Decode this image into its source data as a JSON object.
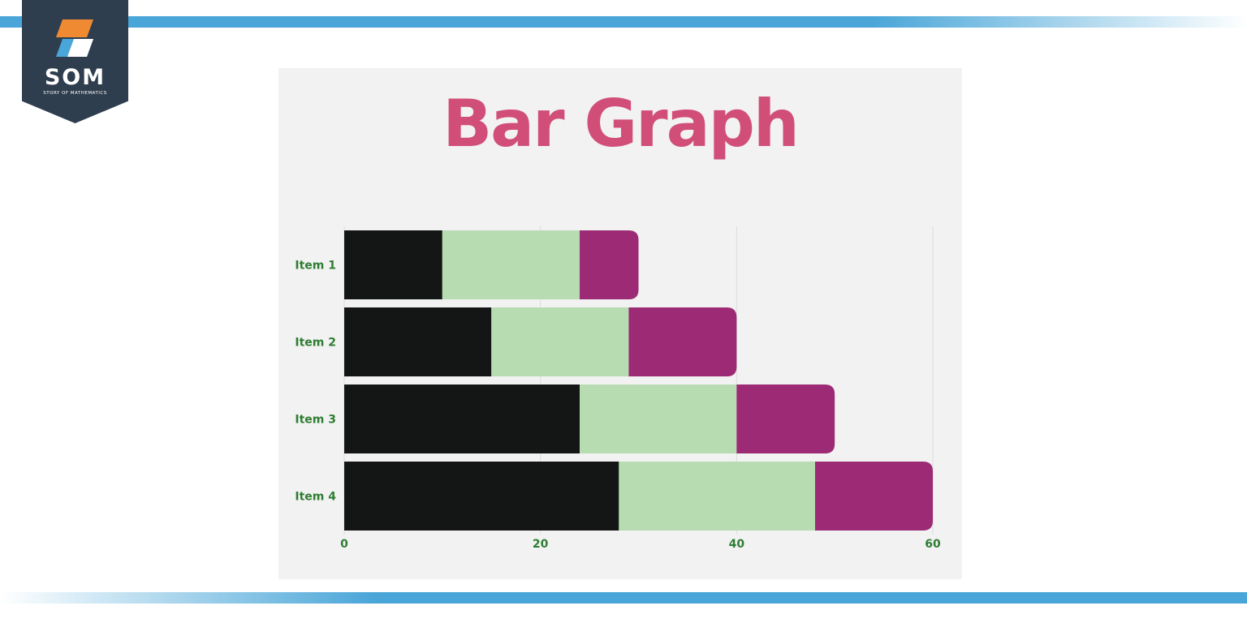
{
  "logo": {
    "text": "SOM",
    "subtitle": "STORY OF MATHEMATICS",
    "icon": "som-logo-icon",
    "colors": {
      "orange": "#f08a32",
      "blue": "#4aa6d8",
      "badge": "#2f3e4e"
    }
  },
  "chart_data": {
    "type": "bar",
    "orientation": "horizontal",
    "stacked": true,
    "title": "Bar Graph",
    "categories": [
      "Item 1",
      "Item 2",
      "Item 3",
      "Item 4"
    ],
    "series": [
      {
        "values": [
          10,
          15,
          24,
          28
        ],
        "color": "#141616"
      },
      {
        "values": [
          14,
          14,
          16,
          20
        ],
        "color": "#b7dcb1"
      },
      {
        "values": [
          6,
          11,
          10,
          12
        ],
        "color": "#9c2a75"
      }
    ],
    "xlim": [
      0,
      60
    ],
    "xticks": [
      "0",
      "20",
      "40",
      "60"
    ],
    "grid": true,
    "legend": "none",
    "colors": {
      "title": "#d14e79",
      "tick_labels": "#2e7d32"
    }
  }
}
